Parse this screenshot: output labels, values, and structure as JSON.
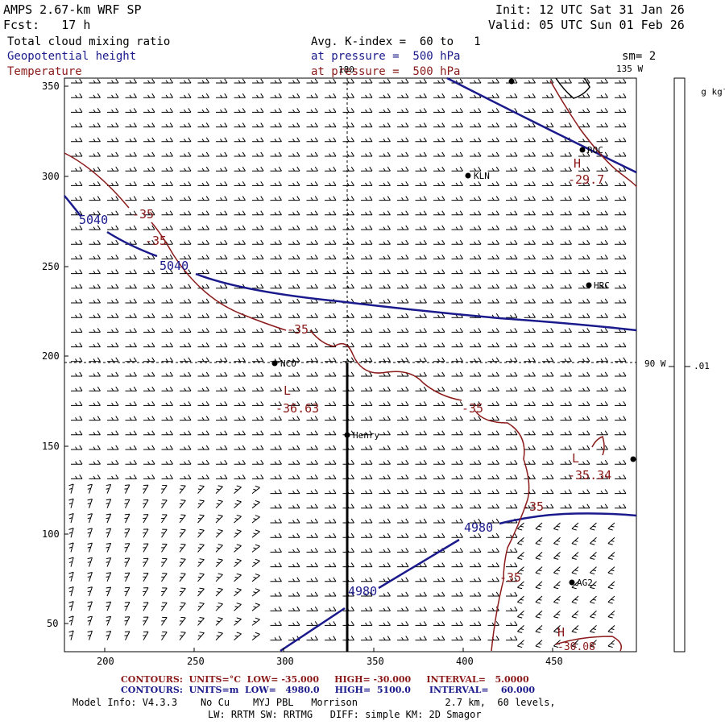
{
  "header": {
    "model_title": "AMPS 2.67-km WRF SP",
    "init": "Init: 12 UTC Sat 31 Jan 26",
    "fcst": "Fcst:   17 h",
    "valid": "Valid: 05 UTC Sun 01 Feb 26",
    "field1": "Total cloud mixing ratio",
    "field2": "Geopotential height",
    "field3": "Temperature",
    "avg_label": "Avg. K-index =  60 to   1",
    "pressure1": "at pressure =  500 hPa",
    "pressure2": "at pressure =  500 hPa",
    "sm": "sm= 2"
  },
  "map": {
    "meridian_180": "180",
    "meridian_135": "135 W",
    "meridian_90": "90 W",
    "x_ticks": [
      "200",
      "250",
      "300",
      "350",
      "400",
      "450"
    ],
    "y_ticks": [
      "350",
      "300",
      "250",
      "200",
      "150",
      "100",
      "50"
    ],
    "stations": {
      "roc": "ROC",
      "kln": "KLN",
      "hrc": "HRC",
      "nco": "NCO",
      "henry": "Henry",
      "ag2": "AG2"
    },
    "height_labels": {
      "h5040_a": "5040",
      "h5040_b": "5040",
      "h4980_a": "4980",
      "h4980_b": "4980"
    },
    "temp_labels": {
      "t35_a": "-35",
      "t35_b": "-35",
      "t35_c": "-35",
      "t35_d": "-35",
      "t35_e": "-35",
      "t35_f": "-35",
      "low1_letter": "L",
      "low1_value": "-36.63",
      "low2_letter": "L",
      "low2_value": "-35.34",
      "high1_letter": "H",
      "high1_value": "-29.7",
      "high2_letter": "H",
      "high2_value": "-30.08"
    }
  },
  "colorbar": {
    "unit": "g kg",
    "unit_sup": "-1",
    "tick": ".01"
  },
  "footer": {
    "temp_contours": "CONTOURS:  UNITS=°C  LOW= -35.000     HIGH= -30.000     INTERVAL=   5.0000",
    "height_contours": "CONTOURS:  UNITS=m  LOW=   4980.0     HIGH=  5100.0      INTERVAL=    60.000",
    "model_info": "Model Info: V4.3.3    No Cu    MYJ PBL   Morrison               2.7 km,  60 levels,",
    "model_info2": "LW: RRTM SW: RRTMG   DIFF: simple KM: 2D Smagor"
  },
  "colors": {
    "height_contour": "#1a1a8c",
    "temp_contour": "#8b1a1a",
    "text": "#000000"
  }
}
